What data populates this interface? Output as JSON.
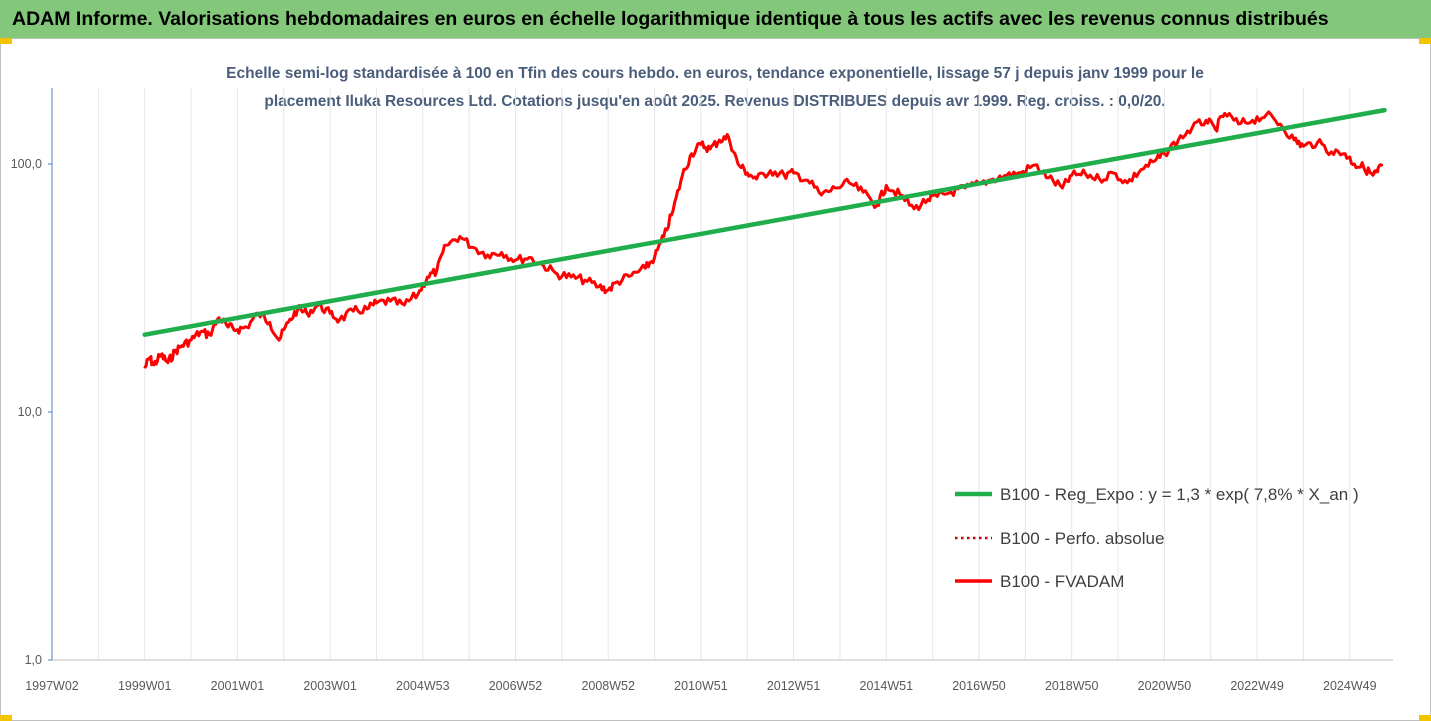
{
  "header": {
    "title": "ADAM Informe. Valorisations hebdomadaires en euros en échelle logarithmique identique à tous les actifs avec les revenus connus distribués"
  },
  "colors": {
    "banner": "#82c77a",
    "trend": "#1fae4b",
    "fvadam": "#ff0000",
    "perfo": "#c00000",
    "subtitle": "#4a5d7a"
  },
  "chart_data": {
    "type": "line",
    "title_line1": "Echelle semi-log standardisée à 100 en Tfin des cours hebdo. en euros, tendance exponentielle, lissage 57 j depuis janv 1999 pour le",
    "title_line2": "placement Iluka Resources Ltd. Cotations jusqu'en août 2025. Revenus DISTRIBUES depuis avr 1999. Reg. croiss. : 0,0/20.",
    "y_scale": "log",
    "ylim": [
      1,
      200
    ],
    "y_ticks": [
      {
        "value": 1,
        "label": "1,0"
      },
      {
        "value": 10,
        "label": "10,0"
      },
      {
        "value": 100,
        "label": "100,0"
      }
    ],
    "xlim": [
      1997.0,
      2025.75
    ],
    "x_ticks": [
      {
        "value": 1997.0,
        "label": "1997W02"
      },
      {
        "value": 1999.0,
        "label": "1999W01"
      },
      {
        "value": 2001.0,
        "label": "2001W01"
      },
      {
        "value": 2003.0,
        "label": "2003W01"
      },
      {
        "value": 2005.0,
        "label": "2004W53"
      },
      {
        "value": 2007.0,
        "label": "2006W52"
      },
      {
        "value": 2009.0,
        "label": "2008W52"
      },
      {
        "value": 2011.0,
        "label": "2010W51"
      },
      {
        "value": 2013.0,
        "label": "2012W51"
      },
      {
        "value": 2015.0,
        "label": "2014W51"
      },
      {
        "value": 2017.0,
        "label": "2016W50"
      },
      {
        "value": 2019.0,
        "label": "2018W50"
      },
      {
        "value": 2021.0,
        "label": "2020W50"
      },
      {
        "value": 2023.0,
        "label": "2022W49"
      },
      {
        "value": 2025.0,
        "label": "2024W49"
      }
    ],
    "legend_position": "bottom-right",
    "series": [
      {
        "name": "B100 - Reg_Expo : y = 1,3 * exp( 7,8% *  X_an )",
        "style": "solid-thick",
        "x": [
          1999.0,
          2025.75
        ],
        "y": [
          20.5,
          165
        ]
      },
      {
        "name": "B100 - Perfo. absolue",
        "style": "dotted",
        "x": [],
        "y": []
      },
      {
        "name": "B100 - FVADAM",
        "style": "solid",
        "x": [
          1999.0,
          1999.1,
          1999.2,
          1999.35,
          1999.5,
          1999.65,
          1999.8,
          2000.0,
          2000.2,
          2000.4,
          2000.6,
          2000.8,
          2001.0,
          2001.2,
          2001.45,
          2001.7,
          2001.9,
          2002.1,
          2002.3,
          2002.5,
          2002.75,
          2003.0,
          2003.2,
          2003.5,
          2003.8,
          2004.0,
          2004.3,
          2004.6,
          2004.9,
          2005.1,
          2005.3,
          2005.5,
          2005.8,
          2006.1,
          2006.4,
          2006.7,
          2007.0,
          2007.3,
          2007.6,
          2007.9,
          2008.2,
          2008.5,
          2008.8,
          2009.0,
          2009.2,
          2009.5,
          2009.8,
          2010.0,
          2010.2,
          2010.4,
          2010.6,
          2010.8,
          2011.0,
          2011.2,
          2011.4,
          2011.6,
          2011.8,
          2012.0,
          2012.2,
          2012.5,
          2012.8,
          2013.0,
          2013.3,
          2013.6,
          2013.9,
          2014.2,
          2014.5,
          2014.8,
          2015.0,
          2015.3,
          2015.6,
          2015.9,
          2016.1,
          2016.4,
          2016.7,
          2017.0,
          2017.3,
          2017.6,
          2017.9,
          2018.2,
          2018.5,
          2018.8,
          2019.0,
          2019.3,
          2019.6,
          2019.9,
          2020.2,
          2020.5,
          2020.8,
          2021.0,
          2021.3,
          2021.6,
          2021.9,
          2022.1,
          2022.3,
          2022.6,
          2022.9,
          2023.2,
          2023.5,
          2023.8,
          2024.0,
          2024.3,
          2024.6,
          2024.9,
          2025.1,
          2025.3,
          2025.5,
          2025.6,
          2025.7
        ],
        "y": [
          15,
          16.5,
          15.5,
          17,
          15.8,
          17.5,
          18.5,
          19.5,
          21,
          20.5,
          24,
          22,
          21.5,
          22,
          25,
          23,
          19.5,
          23,
          26,
          25,
          27,
          25,
          23.5,
          25.5,
          26,
          27.5,
          28,
          27,
          30,
          35,
          37,
          47,
          51,
          46,
          43,
          44,
          41,
          42,
          39,
          36,
          35,
          34,
          32,
          31,
          33.5,
          35.5,
          38,
          42,
          51,
          65,
          90,
          110,
          120,
          115,
          125,
          128,
          100,
          92,
          87,
          94,
          90,
          92,
          86,
          75,
          80,
          84,
          77,
          68,
          82,
          75,
          66,
          72,
          74,
          77,
          80,
          83,
          87,
          90,
          92,
          99,
          88,
          80,
          90,
          91,
          87,
          92,
          84,
          95,
          103,
          110,
          125,
          140,
          150,
          138,
          160,
          145,
          150,
          158,
          145,
          125,
          118,
          122,
          112,
          110,
          100,
          97,
          90,
          93,
          100
        ]
      }
    ]
  }
}
